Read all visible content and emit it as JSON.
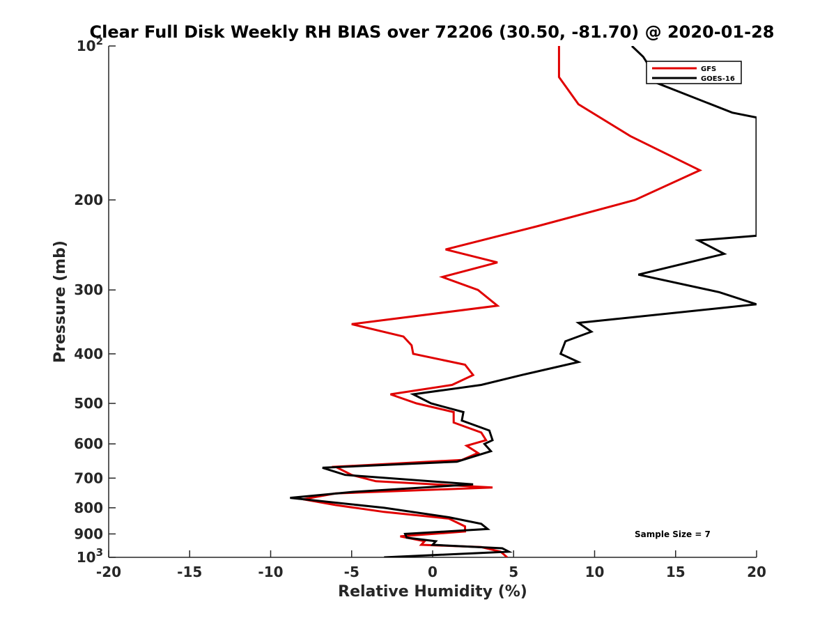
{
  "chart_data": {
    "type": "line",
    "title": "Clear Full Disk Weekly RH BIAS over 72206 (30.50, -81.70) @ 2020-01-28",
    "xlabel": "Relative Humidity (%)",
    "ylabel": "Pressure (mb)",
    "xlim": [
      -20,
      20
    ],
    "ylim": [
      100,
      1000
    ],
    "y_scale": "log",
    "y_reversed": true,
    "grid": false,
    "legend_position": "top-right",
    "x_ticks": [
      -20,
      -15,
      -10,
      -5,
      0,
      5,
      10,
      15,
      20
    ],
    "x_tick_labels": [
      "-20",
      "-15",
      "-10",
      "-5",
      "0",
      "5",
      "10",
      "15",
      "20"
    ],
    "y_ticks": [
      100,
      200,
      300,
      400,
      500,
      600,
      700,
      800,
      900,
      1000
    ],
    "y_tick_labels": [
      {
        "base": "10",
        "exp": "2"
      },
      {
        "base": "200",
        "exp": ""
      },
      {
        "base": "300",
        "exp": ""
      },
      {
        "base": "400",
        "exp": ""
      },
      {
        "base": "500",
        "exp": ""
      },
      {
        "base": "600",
        "exp": ""
      },
      {
        "base": "700",
        "exp": ""
      },
      {
        "base": "800",
        "exp": ""
      },
      {
        "base": "900",
        "exp": ""
      },
      {
        "base": "10",
        "exp": "3"
      }
    ],
    "annotation": "Sample Size = 7",
    "series": [
      {
        "name": "GFS",
        "color": "#e00000",
        "points": [
          [
            7.8,
            100
          ],
          [
            7.8,
            115
          ],
          [
            9.0,
            130
          ],
          [
            12.2,
            150
          ],
          [
            16.5,
            175
          ],
          [
            12.5,
            200
          ],
          [
            6.5,
            225
          ],
          [
            0.8,
            250
          ],
          [
            4.0,
            265
          ],
          [
            0.6,
            283
          ],
          [
            2.8,
            300
          ],
          [
            4.0,
            322
          ],
          [
            -5.0,
            350
          ],
          [
            -1.8,
            370
          ],
          [
            -1.3,
            385
          ],
          [
            -1.2,
            400
          ],
          [
            2.0,
            420
          ],
          [
            2.5,
            440
          ],
          [
            1.2,
            460
          ],
          [
            -2.6,
            480
          ],
          [
            -1.0,
            500
          ],
          [
            1.3,
            520
          ],
          [
            1.3,
            545
          ],
          [
            3.0,
            570
          ],
          [
            3.3,
            590
          ],
          [
            2.1,
            605
          ],
          [
            2.8,
            625
          ],
          [
            1.8,
            645
          ],
          [
            -6.0,
            665
          ],
          [
            -5.0,
            690
          ],
          [
            -3.5,
            710
          ],
          [
            3.7,
            730
          ],
          [
            -6.0,
            750
          ],
          [
            -8.0,
            770
          ],
          [
            -6.0,
            790
          ],
          [
            -3.0,
            815
          ],
          [
            1.0,
            840
          ],
          [
            2.0,
            870
          ],
          [
            2.0,
            890
          ],
          [
            -2.0,
            910
          ],
          [
            -0.5,
            930
          ],
          [
            -0.7,
            945
          ],
          [
            3.0,
            955
          ],
          [
            4.2,
            975
          ],
          [
            4.6,
            1000
          ]
        ]
      },
      {
        "name": "GOES-16",
        "color": "#000000",
        "points": [
          [
            12.3,
            100
          ],
          [
            13.0,
            105
          ],
          [
            13.8,
            115
          ],
          [
            13.8,
            118
          ],
          [
            18.5,
            135
          ],
          [
            20.0,
            138
          ],
          [
            20.0,
            235
          ],
          [
            16.4,
            240
          ],
          [
            18.0,
            255
          ],
          [
            12.7,
            280
          ],
          [
            17.7,
            303
          ],
          [
            20.0,
            320
          ],
          [
            9.0,
            348
          ],
          [
            9.8,
            362
          ],
          [
            8.2,
            378
          ],
          [
            7.9,
            400
          ],
          [
            9.0,
            415
          ],
          [
            5.5,
            440
          ],
          [
            3.0,
            460
          ],
          [
            -1.2,
            480
          ],
          [
            -0.1,
            500
          ],
          [
            1.9,
            520
          ],
          [
            1.8,
            540
          ],
          [
            3.5,
            565
          ],
          [
            3.7,
            590
          ],
          [
            3.2,
            600
          ],
          [
            3.6,
            620
          ],
          [
            1.5,
            650
          ],
          [
            -6.8,
            668
          ],
          [
            -5.4,
            690
          ],
          [
            2.5,
            720
          ],
          [
            -5.0,
            745
          ],
          [
            -8.8,
            765
          ],
          [
            -3.0,
            800
          ],
          [
            1.0,
            835
          ],
          [
            3.0,
            860
          ],
          [
            3.4,
            880
          ],
          [
            -1.7,
            900
          ],
          [
            -1.6,
            915
          ],
          [
            0.2,
            930
          ],
          [
            0.0,
            945
          ],
          [
            4.3,
            960
          ],
          [
            4.7,
            975
          ],
          [
            -3.0,
            1000
          ]
        ]
      }
    ]
  }
}
